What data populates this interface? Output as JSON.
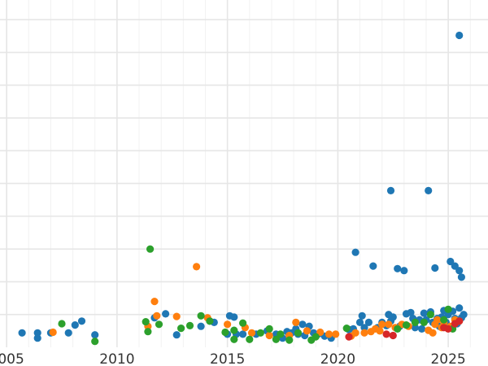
{
  "chart_data": {
    "type": "scatter",
    "title": "",
    "xlabel": "",
    "ylabel": "",
    "xlim": [
      2004.7,
      2026.8
    ],
    "ylim": [
      0,
      5.3
    ],
    "x_ticks": [
      2005,
      2010,
      2015,
      2020,
      2025
    ],
    "x_tick_labels": [
      "2005",
      "2010",
      "2015",
      "2020",
      "2025"
    ],
    "y_gridlines": [
      0.5,
      1,
      1.5,
      2,
      2.5,
      3,
      3.5,
      4,
      4.5,
      5
    ],
    "grid": true,
    "legend": "none",
    "series": [
      {
        "color": "#1f77b4",
        "points": [
          [
            2005.7,
            0.22
          ],
          [
            2006.4,
            0.22
          ],
          [
            2006.4,
            0.14
          ],
          [
            2007.0,
            0.22
          ],
          [
            2007.8,
            0.22
          ],
          [
            2008.1,
            0.34
          ],
          [
            2008.4,
            0.4
          ],
          [
            2009.0,
            0.19
          ],
          [
            2011.7,
            0.45
          ],
          [
            2012.2,
            0.51
          ],
          [
            2012.7,
            0.19
          ],
          [
            2013.8,
            0.32
          ],
          [
            2014.2,
            0.4
          ],
          [
            2014.4,
            0.38
          ],
          [
            2015.1,
            0.48
          ],
          [
            2015.3,
            0.46
          ],
          [
            2015.0,
            0.2
          ],
          [
            2015.4,
            0.2
          ],
          [
            2015.7,
            0.2
          ],
          [
            2016.3,
            0.2
          ],
          [
            2016.8,
            0.25
          ],
          [
            2017.2,
            0.2
          ],
          [
            2017.5,
            0.14
          ],
          [
            2017.7,
            0.24
          ],
          [
            2017.9,
            0.22
          ],
          [
            2018.1,
            0.28
          ],
          [
            2018.2,
            0.2
          ],
          [
            2018.4,
            0.35
          ],
          [
            2018.5,
            0.18
          ],
          [
            2018.7,
            0.32
          ],
          [
            2018.9,
            0.22
          ],
          [
            2019.1,
            0.2
          ],
          [
            2019.4,
            0.17
          ],
          [
            2019.7,
            0.14
          ],
          [
            2020.5,
            0.27
          ],
          [
            2020.7,
            0.28
          ],
          [
            2020.8,
            1.45
          ],
          [
            2021.0,
            0.38
          ],
          [
            2021.1,
            0.48
          ],
          [
            2021.2,
            0.3
          ],
          [
            2021.4,
            0.38
          ],
          [
            2021.6,
            1.24
          ],
          [
            2021.8,
            0.3
          ],
          [
            2022.0,
            0.38
          ],
          [
            2022.2,
            0.33
          ],
          [
            2022.3,
            0.5
          ],
          [
            2022.4,
            2.39
          ],
          [
            2022.4,
            0.4
          ],
          [
            2022.5,
            0.46
          ],
          [
            2022.7,
            1.2
          ],
          [
            2022.8,
            0.32
          ],
          [
            2023.0,
            1.17
          ],
          [
            2023.1,
            0.51
          ],
          [
            2023.3,
            0.53
          ],
          [
            2023.4,
            0.44
          ],
          [
            2023.5,
            0.3
          ],
          [
            2023.7,
            0.42
          ],
          [
            2023.8,
            0.28
          ],
          [
            2023.9,
            0.52
          ],
          [
            2024.0,
            0.42
          ],
          [
            2024.1,
            2.39
          ],
          [
            2024.2,
            0.54
          ],
          [
            2024.3,
            0.38
          ],
          [
            2024.4,
            1.21
          ],
          [
            2024.5,
            0.44
          ],
          [
            2024.6,
            0.32
          ],
          [
            2024.7,
            0.46
          ],
          [
            2024.8,
            0.56
          ],
          [
            2024.9,
            0.38
          ],
          [
            2025.0,
            0.5
          ],
          [
            2025.1,
            1.31
          ],
          [
            2025.2,
            0.55
          ],
          [
            2025.3,
            0.44
          ],
          [
            2025.3,
            1.24
          ],
          [
            2025.4,
            0.36
          ],
          [
            2025.5,
            1.17
          ],
          [
            2025.5,
            0.6
          ],
          [
            2025.5,
            4.76
          ],
          [
            2025.6,
            1.07
          ],
          [
            2025.6,
            0.45
          ],
          [
            2025.7,
            0.5
          ]
        ]
      },
      {
        "color": "#ff7f0e",
        "points": [
          [
            2007.1,
            0.23
          ],
          [
            2011.4,
            0.32
          ],
          [
            2011.7,
            0.7
          ],
          [
            2011.8,
            0.48
          ],
          [
            2012.7,
            0.47
          ],
          [
            2013.6,
            1.23
          ],
          [
            2014.1,
            0.45
          ],
          [
            2015.0,
            0.35
          ],
          [
            2015.8,
            0.3
          ],
          [
            2016.1,
            0.22
          ],
          [
            2016.9,
            0.18
          ],
          [
            2017.8,
            0.18
          ],
          [
            2018.1,
            0.38
          ],
          [
            2018.6,
            0.25
          ],
          [
            2019.2,
            0.23
          ],
          [
            2019.6,
            0.2
          ],
          [
            2019.9,
            0.2
          ],
          [
            2020.6,
            0.17
          ],
          [
            2020.8,
            0.22
          ],
          [
            2021.2,
            0.22
          ],
          [
            2021.5,
            0.24
          ],
          [
            2021.7,
            0.28
          ],
          [
            2021.9,
            0.25
          ],
          [
            2022.0,
            0.35
          ],
          [
            2022.3,
            0.35
          ],
          [
            2022.6,
            0.3
          ],
          [
            2022.9,
            0.35
          ],
          [
            2023.2,
            0.32
          ],
          [
            2024.1,
            0.26
          ],
          [
            2024.3,
            0.22
          ],
          [
            2024.4,
            0.35
          ],
          [
            2024.5,
            0.42
          ],
          [
            2024.7,
            0.3
          ],
          [
            2024.8,
            0.38
          ],
          [
            2025.1,
            0.32
          ],
          [
            2025.3,
            0.42
          ],
          [
            2025.5,
            0.4
          ]
        ]
      },
      {
        "color": "#2ca02c",
        "points": [
          [
            2007.5,
            0.36
          ],
          [
            2009.0,
            0.09
          ],
          [
            2011.3,
            0.39
          ],
          [
            2011.4,
            0.24
          ],
          [
            2011.5,
            1.5
          ],
          [
            2011.9,
            0.35
          ],
          [
            2012.9,
            0.29
          ],
          [
            2013.3,
            0.33
          ],
          [
            2013.8,
            0.48
          ],
          [
            2014.2,
            0.4
          ],
          [
            2014.9,
            0.23
          ],
          [
            2015.3,
            0.26
          ],
          [
            2015.3,
            0.12
          ],
          [
            2015.7,
            0.37
          ],
          [
            2016.0,
            0.12
          ],
          [
            2016.5,
            0.22
          ],
          [
            2016.9,
            0.28
          ],
          [
            2017.2,
            0.12
          ],
          [
            2017.4,
            0.2
          ],
          [
            2017.8,
            0.11
          ],
          [
            2018.2,
            0.22
          ],
          [
            2018.8,
            0.11
          ],
          [
            2019.0,
            0.16
          ],
          [
            2020.4,
            0.29
          ],
          [
            2022.7,
            0.28
          ],
          [
            2023.1,
            0.34
          ],
          [
            2023.5,
            0.38
          ],
          [
            2023.9,
            0.38
          ],
          [
            2024.2,
            0.5
          ],
          [
            2024.8,
            0.42
          ],
          [
            2025.0,
            0.58
          ],
          [
            2025.2,
            0.28
          ]
        ]
      },
      {
        "color": "#d62728",
        "points": [
          [
            2020.5,
            0.16
          ],
          [
            2022.2,
            0.2
          ],
          [
            2022.5,
            0.18
          ],
          [
            2024.8,
            0.3
          ],
          [
            2025.0,
            0.28
          ],
          [
            2025.3,
            0.36
          ],
          [
            2025.5,
            0.4
          ]
        ]
      }
    ]
  }
}
